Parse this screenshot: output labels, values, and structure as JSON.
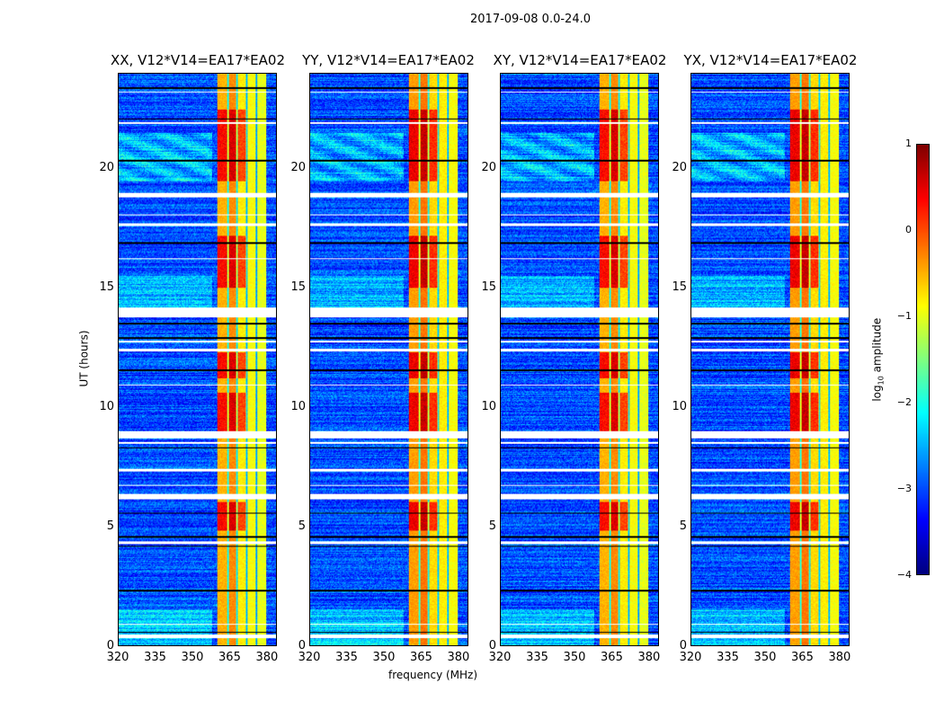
{
  "chart_data": {
    "type": "heatmap",
    "title": "2017-09-08 0.0-24.0",
    "panels": [
      {
        "title": "XX, V12*V14=EA17*EA02",
        "pol": "XX"
      },
      {
        "title": "YY, V12*V14=EA17*EA02",
        "pol": "YY"
      },
      {
        "title": "XY, V12*V14=EA17*EA02",
        "pol": "XY"
      },
      {
        "title": "YX, V12*V14=EA17*EA02",
        "pol": "YX"
      }
    ],
    "xlabel": "frequency (MHz)",
    "ylabel": "UT (hours)",
    "xlim": [
      320,
      384
    ],
    "ylim": [
      0,
      24
    ],
    "xticks": [
      "320",
      "335",
      "350",
      "365",
      "380"
    ],
    "xtick_values": [
      320,
      335,
      350,
      365,
      380
    ],
    "yticks": [
      "0",
      "5",
      "10",
      "15",
      "20"
    ],
    "ytick_values": [
      0,
      5,
      10,
      15,
      20
    ],
    "colorbar": {
      "label_main": "log",
      "label_sub": "10",
      "label_rest": " amplitude",
      "range": [
        -4,
        1
      ],
      "ticks": [
        "−4",
        "−3",
        "−2",
        "−1",
        "0",
        "1"
      ],
      "tick_values": [
        -4,
        -3,
        -2,
        -1,
        0,
        1
      ],
      "colormap": "jet"
    },
    "background_level": -3.0,
    "rfi_bands": [
      {
        "freq": [
          360,
          364.5
        ],
        "level": -0.5
      },
      {
        "freq": [
          364.5,
          368
        ],
        "level": -0.3
      },
      {
        "freq": [
          368,
          372
        ],
        "level": -0.8
      },
      {
        "freq": [
          372,
          376
        ],
        "level": -0.9
      },
      {
        "freq": [
          376,
          380
        ],
        "level": -1.0
      }
    ],
    "band_gaps_mhz": [
      364.5,
      368,
      372,
      376
    ],
    "bright_intervals_hours": [
      [
        4.8,
        6.0
      ],
      [
        9.0,
        10.6
      ],
      [
        11.2,
        12.3
      ],
      [
        15.0,
        17.2
      ],
      [
        19.5,
        22.5
      ]
    ],
    "flagged_intervals_hours": [
      [
        0.3,
        0.45
      ],
      [
        0.85,
        0.9
      ],
      [
        4.25,
        4.35
      ],
      [
        6.15,
        6.35
      ],
      [
        6.7,
        6.75
      ],
      [
        7.3,
        7.4
      ],
      [
        8.45,
        8.55
      ],
      [
        8.7,
        9.0
      ],
      [
        10.9,
        10.95
      ],
      [
        12.35,
        12.45
      ],
      [
        12.7,
        12.8
      ],
      [
        13.75,
        14.2
      ],
      [
        16.2,
        16.25
      ],
      [
        17.6,
        17.7
      ],
      [
        18.05,
        18.1
      ],
      [
        18.8,
        19.0
      ],
      [
        21.9,
        21.95
      ],
      [
        23.2,
        23.25
      ]
    ],
    "dark_lines_hours": [
      0.55,
      2.3,
      4.15,
      4.55,
      5.55,
      8.3,
      11.55,
      12.9,
      13.5,
      14.1,
      16.9,
      20.35,
      22.1,
      23.4
    ]
  }
}
